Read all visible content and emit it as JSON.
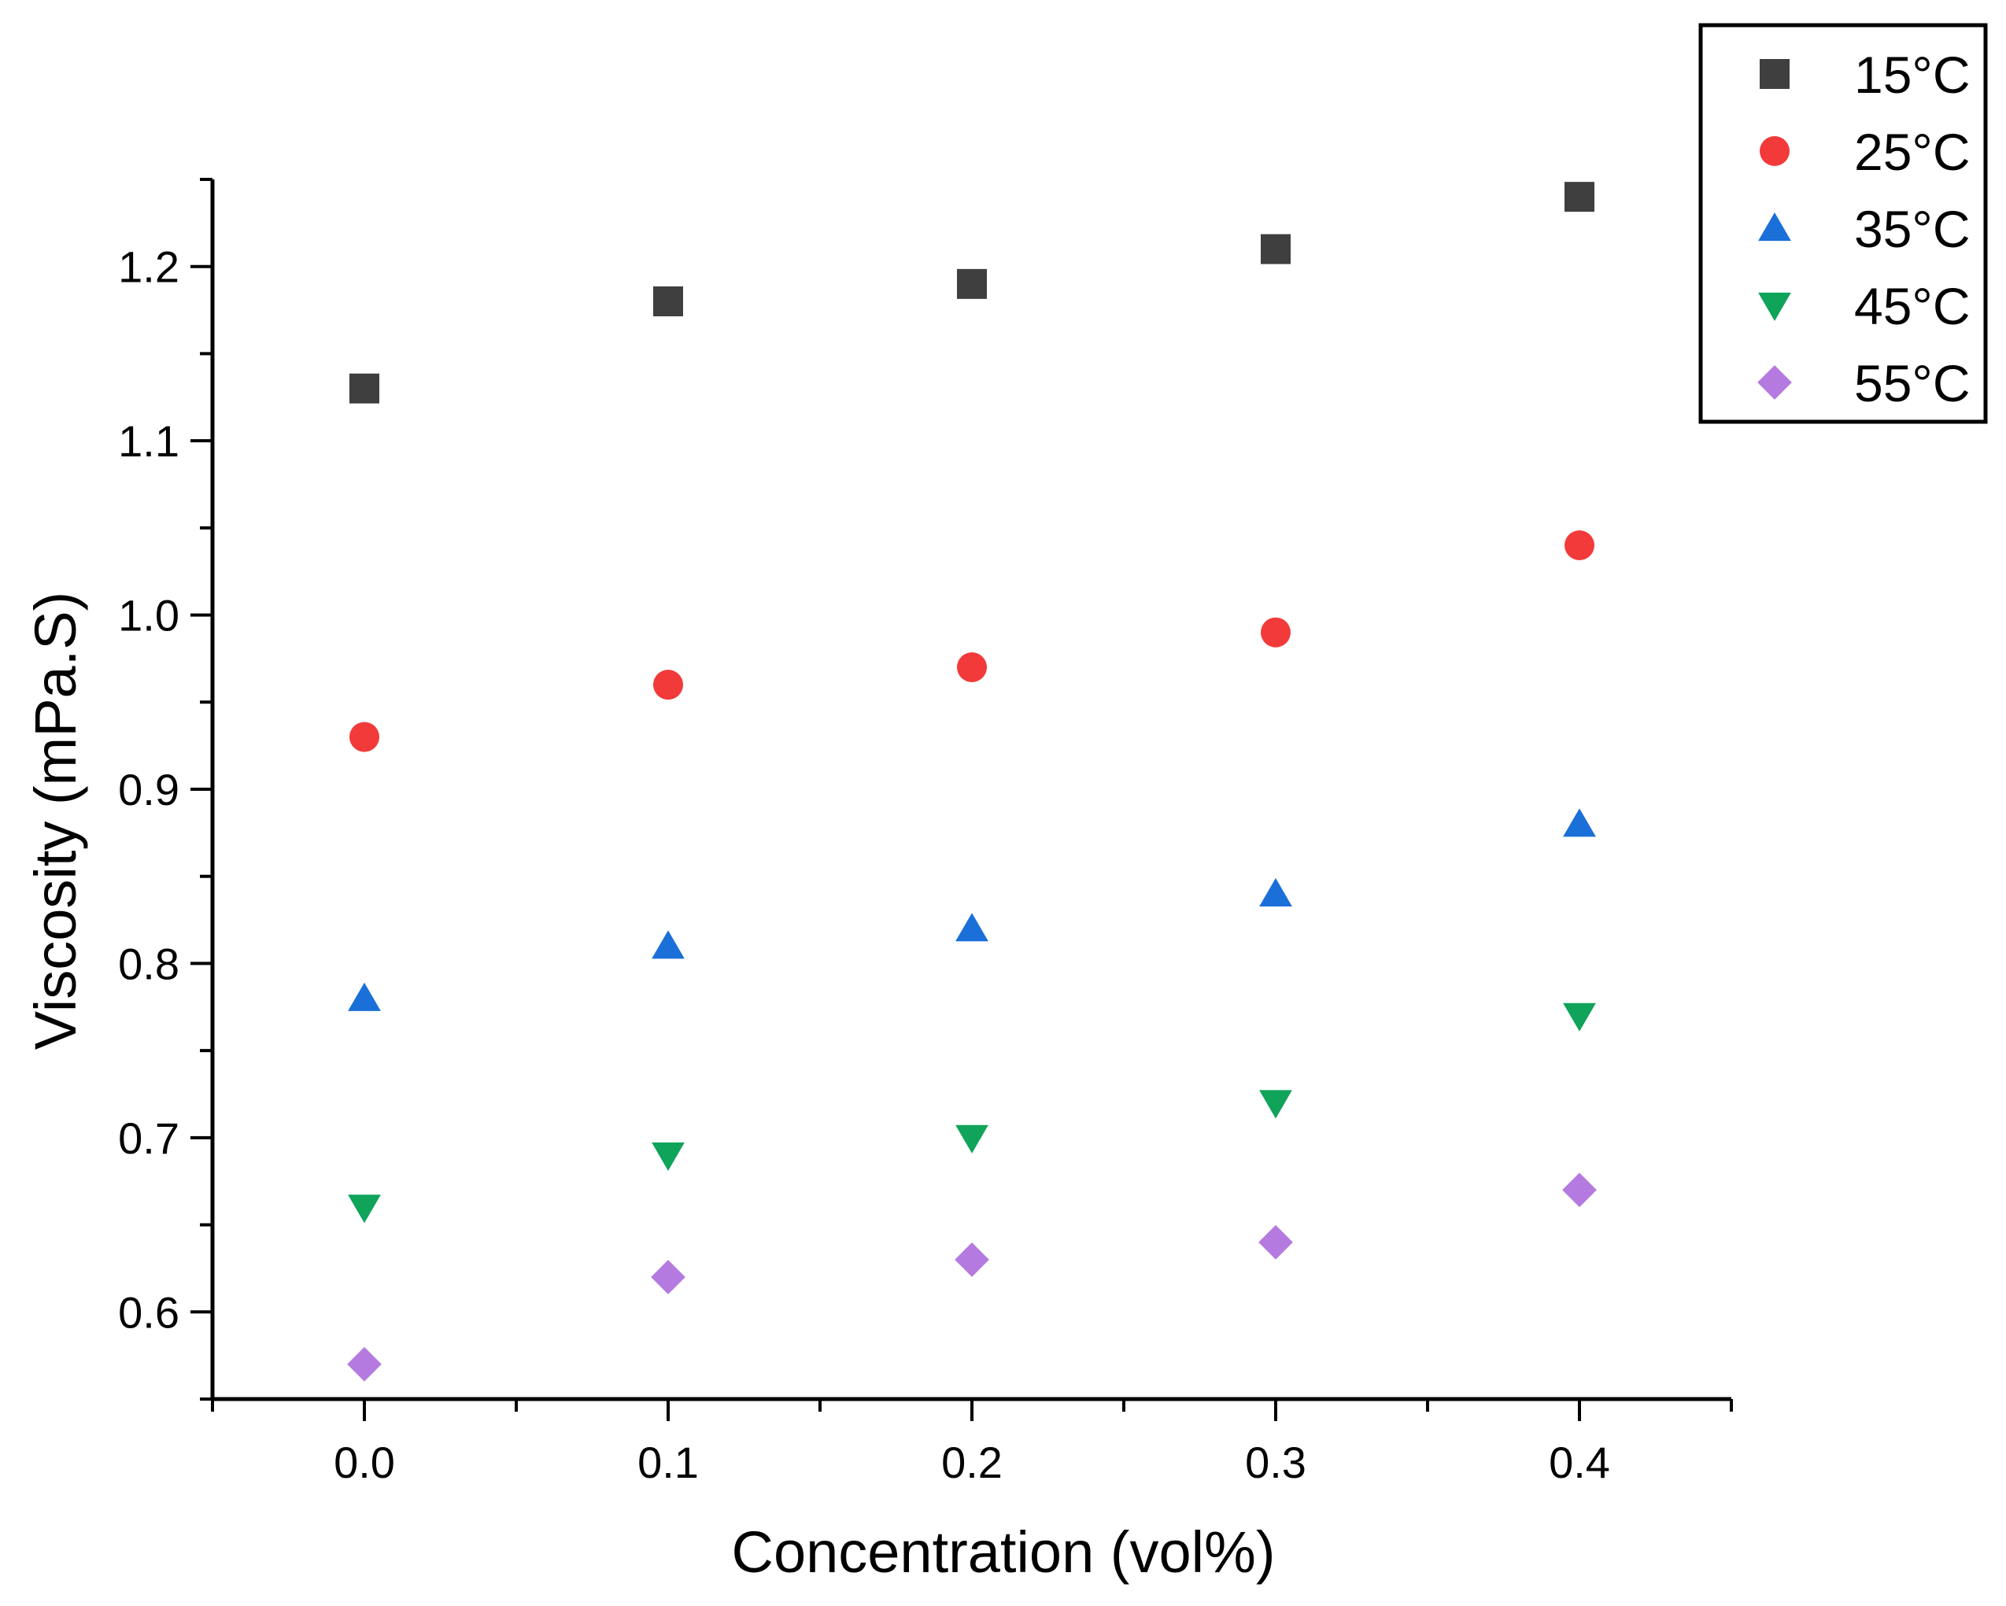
{
  "chart_data": {
    "type": "scatter",
    "title": "",
    "xlabel": "Concentration (vol%)",
    "ylabel": "Viscosity (mPa.S)",
    "xlim": [
      -0.05,
      0.45
    ],
    "ylim": [
      0.55,
      1.25
    ],
    "xticks": [
      "0.0",
      "0.1",
      "0.2",
      "0.3",
      "0.4"
    ],
    "yticks": [
      "0.6",
      "0.7",
      "0.8",
      "0.9",
      "1.0",
      "1.1",
      "1.2"
    ],
    "x": [
      0.0,
      0.1,
      0.2,
      0.3,
      0.4
    ],
    "grid": false,
    "legend_position": "top-right",
    "series": [
      {
        "name": "15°C",
        "marker": "square",
        "color": "#3f3f3f",
        "values": [
          1.13,
          1.18,
          1.19,
          1.21,
          1.24
        ]
      },
      {
        "name": "25°C",
        "marker": "circle",
        "color": "#f23a3a",
        "values": [
          0.93,
          0.96,
          0.97,
          0.99,
          1.04
        ]
      },
      {
        "name": "35°C",
        "marker": "triangle-up",
        "color": "#1a6fd9",
        "values": [
          0.78,
          0.81,
          0.82,
          0.84,
          0.88
        ]
      },
      {
        "name": "45°C",
        "marker": "triangle-down",
        "color": "#10a35a",
        "values": [
          0.66,
          0.69,
          0.7,
          0.72,
          0.77
        ]
      },
      {
        "name": "55°C",
        "marker": "diamond",
        "color": "#b57ae0",
        "values": [
          0.57,
          0.62,
          0.63,
          0.64,
          0.67
        ]
      }
    ]
  }
}
